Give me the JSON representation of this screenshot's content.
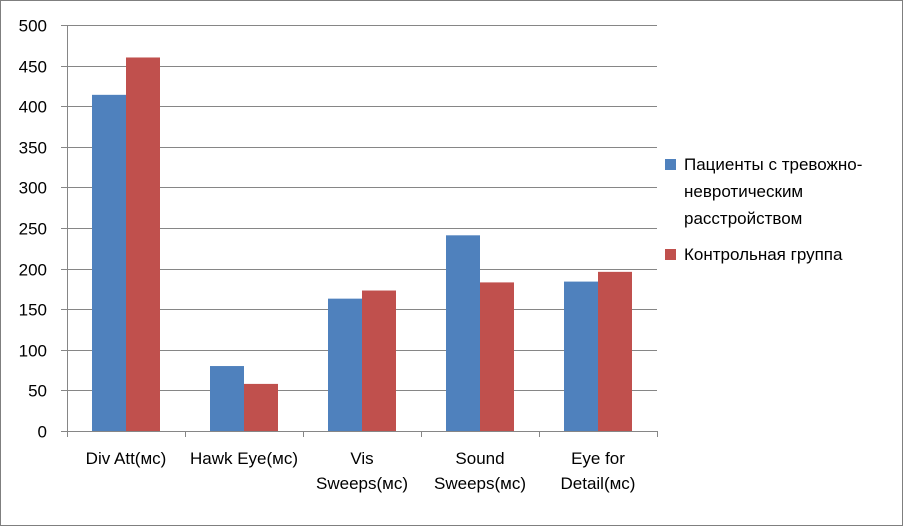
{
  "chart_data": {
    "type": "bar",
    "categories": [
      [
        "Div Att(мс)"
      ],
      [
        "Hawk Eye(мс)"
      ],
      [
        "Vis",
        "Sweeps(мс)"
      ],
      [
        "Sound",
        "Sweeps(мс)"
      ],
      [
        "Eye for",
        "Detail(мс)"
      ]
    ],
    "series": [
      {
        "name_lines": [
          "Пациенты с тревожно-",
          "невротическим",
          "расстройством"
        ],
        "color": "#4f81bd",
        "values": [
          414,
          80,
          163,
          241,
          184
        ]
      },
      {
        "name_lines": [
          "Контрольная группа"
        ],
        "color": "#c0504d",
        "values": [
          460,
          58,
          173,
          183,
          196
        ]
      }
    ],
    "ylim": [
      0,
      500
    ],
    "yticks": [
      "0",
      "50",
      "100",
      "150",
      "200",
      "250",
      "300",
      "350",
      "400",
      "450",
      "500"
    ],
    "grid": true,
    "legend_position": "right"
  }
}
